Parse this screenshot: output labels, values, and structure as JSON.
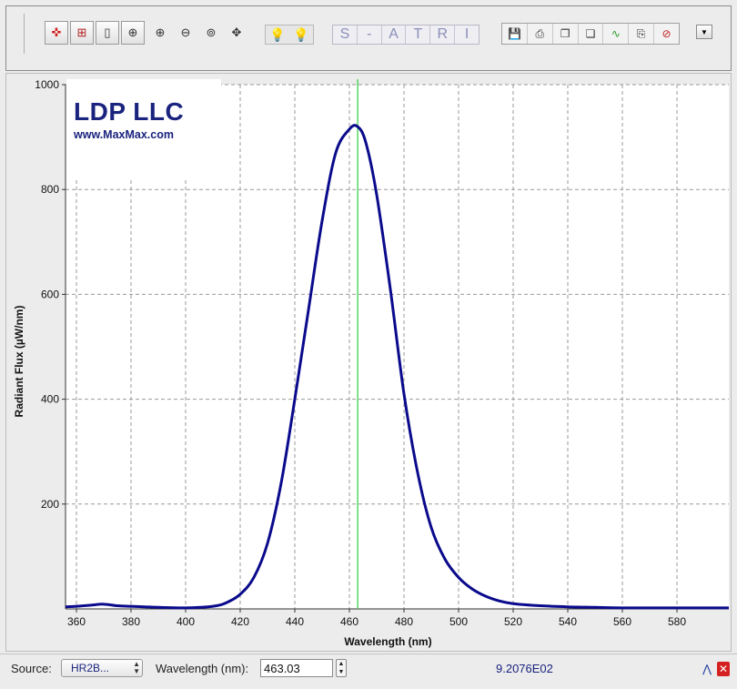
{
  "toolbar": {
    "tools": [
      {
        "name": "select-point-icon",
        "glyph": "✜"
      },
      {
        "name": "zoom-region-icon",
        "glyph": "⊞"
      },
      {
        "name": "zoom-vertical-icon",
        "glyph": "▯"
      },
      {
        "name": "zoom-100-icon",
        "glyph": "⊕"
      },
      {
        "name": "zoom-in-icon",
        "glyph": "⊕"
      },
      {
        "name": "zoom-out-icon",
        "glyph": "⊖"
      },
      {
        "name": "zoom-fit-icon",
        "glyph": "⊚"
      },
      {
        "name": "pan-icon",
        "glyph": "✥"
      }
    ],
    "mode_letters": [
      "S",
      "-",
      "A",
      "T",
      "R",
      "I"
    ],
    "file_tools": [
      {
        "name": "save-icon",
        "glyph": "💾"
      },
      {
        "name": "print-icon",
        "glyph": "⎙"
      },
      {
        "name": "copy-icon",
        "glyph": "❐"
      },
      {
        "name": "copy-window-icon",
        "glyph": "❏"
      },
      {
        "name": "curve-icon",
        "glyph": "∿"
      },
      {
        "name": "export-icon",
        "glyph": "⎘"
      },
      {
        "name": "close-spectrum-icon",
        "glyph": "⊘"
      }
    ]
  },
  "logo": {
    "title": "LDP LLC",
    "url": "www.MaxMax.com"
  },
  "chart_data": {
    "type": "line",
    "xlabel": "Wavelength (nm)",
    "ylabel": "Radiant Flux (µW/nm)",
    "xlim": [
      356,
      599
    ],
    "ylim": [
      0,
      1000
    ],
    "x_ticks": [
      360,
      380,
      400,
      420,
      440,
      460,
      480,
      500,
      520,
      540,
      560,
      580
    ],
    "y_ticks": [
      200,
      400,
      600,
      800,
      1000
    ],
    "grid": true,
    "marker_x": 463.03,
    "line_color": "#0a0a8c",
    "marker_color": "#2ecc40",
    "series": [
      {
        "x": [
          356,
          360,
          365,
          370,
          375,
          380,
          385,
          390,
          400,
          410,
          415,
          420,
          425,
          430,
          435,
          440,
          445,
          450,
          455,
          460,
          463,
          466,
          470,
          475,
          480,
          485,
          490,
          495,
          500,
          505,
          510,
          515,
          520,
          530,
          540,
          550,
          560,
          580,
          599
        ],
        "y": [
          4,
          5,
          7,
          9,
          6,
          5,
          4,
          3,
          2,
          5,
          12,
          28,
          60,
          125,
          240,
          400,
          570,
          740,
          870,
          915,
          920,
          890,
          790,
          610,
          410,
          260,
          155,
          95,
          60,
          38,
          24,
          15,
          10,
          6,
          4,
          3,
          2,
          2,
          2
        ]
      }
    ]
  },
  "status": {
    "source_label": "Source:",
    "source_value": "HR2B...",
    "wavelength_label": "Wavelength (nm):",
    "wavelength_value": "463.03",
    "readout": "9.2076E02"
  }
}
